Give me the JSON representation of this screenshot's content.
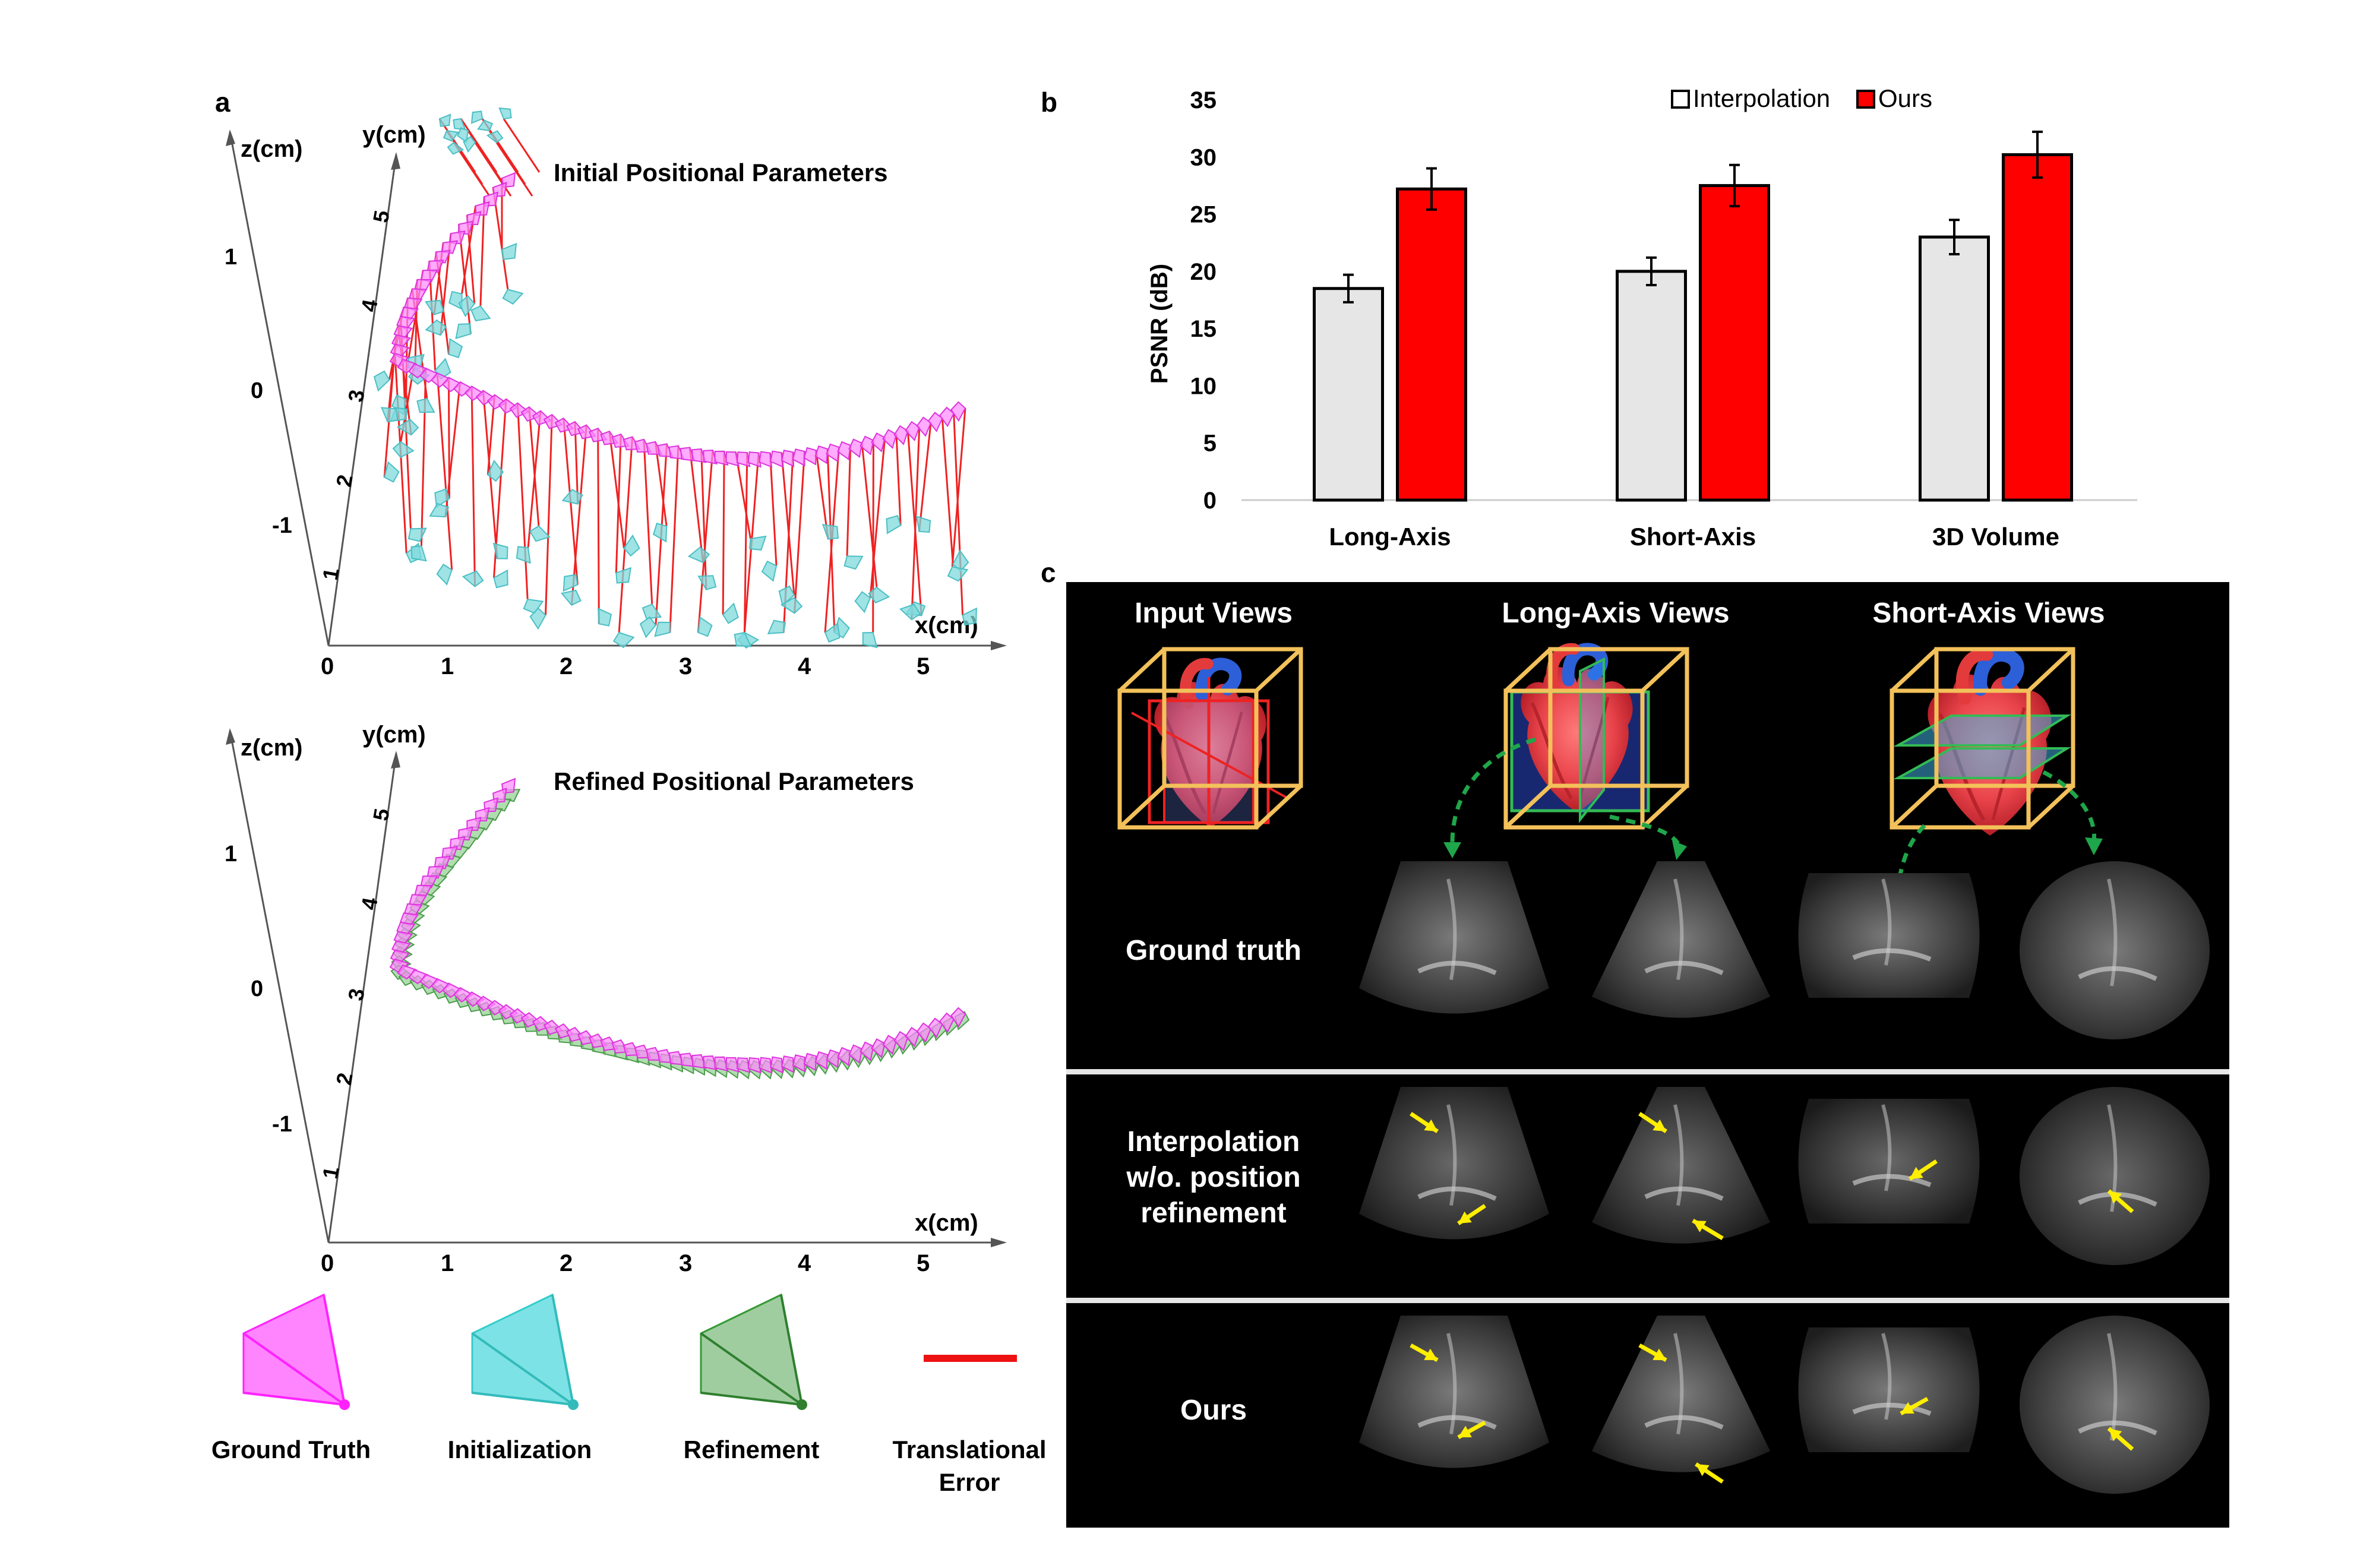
{
  "panel_a": {
    "label": "a",
    "top": {
      "title": "Initial Positional Parameters",
      "z_label": "z(cm)",
      "y_label": "y(cm)",
      "x_label": "x(cm)",
      "z_ticks": [
        "1",
        "0",
        "-1"
      ],
      "y_ticks": [
        "1",
        "2",
        "3",
        "4",
        "5"
      ],
      "x_ticks": [
        "0",
        "1",
        "2",
        "3",
        "4",
        "5"
      ]
    },
    "bottom": {
      "title": "Refined Positional Parameters",
      "z_label": "z(cm)",
      "y_label": "y(cm)",
      "x_label": "x(cm)",
      "z_ticks": [
        "1",
        "0",
        "-1"
      ],
      "y_ticks": [
        "1",
        "2",
        "3",
        "4",
        "5"
      ],
      "x_ticks": [
        "0",
        "1",
        "2",
        "3",
        "4",
        "5"
      ]
    },
    "legend": [
      {
        "label": "Ground Truth",
        "color": "#ff33ff"
      },
      {
        "label": "Initialization",
        "color": "#33cccc"
      },
      {
        "label": "Refinement",
        "color": "#339933"
      },
      {
        "label_line1": "Translational",
        "label_line2": "Error",
        "color": "#ee1111"
      }
    ]
  },
  "panel_b": {
    "label": "b",
    "chart_data": {
      "type": "bar",
      "categories": [
        "Long-Axis",
        "Short-Axis",
        "3D Volume"
      ],
      "series": [
        {
          "name": "Interpolation",
          "color": "#e6e6e6",
          "values": [
            18.5,
            20.0,
            23.0
          ],
          "errors": [
            1.2,
            1.2,
            1.5
          ]
        },
        {
          "name": "Ours",
          "color": "#ff0000",
          "values": [
            27.2,
            27.5,
            30.2
          ],
          "errors": [
            1.8,
            1.8,
            2.0
          ]
        }
      ],
      "ylabel": "PSNR (dB)",
      "ylim": [
        0,
        35
      ],
      "yticks": [
        0,
        5,
        10,
        15,
        20,
        25,
        30,
        35
      ],
      "legend_position": "top"
    }
  },
  "panel_c": {
    "label": "c",
    "headers": [
      "Input Views",
      "Long-Axis Views",
      "Short-Axis Views"
    ],
    "rows": [
      {
        "label_lines": [
          "Ground truth"
        ]
      },
      {
        "label_lines": [
          "Interpolation",
          "w/o. position",
          "refinement"
        ]
      },
      {
        "label_lines": [
          "Ours"
        ]
      }
    ]
  }
}
